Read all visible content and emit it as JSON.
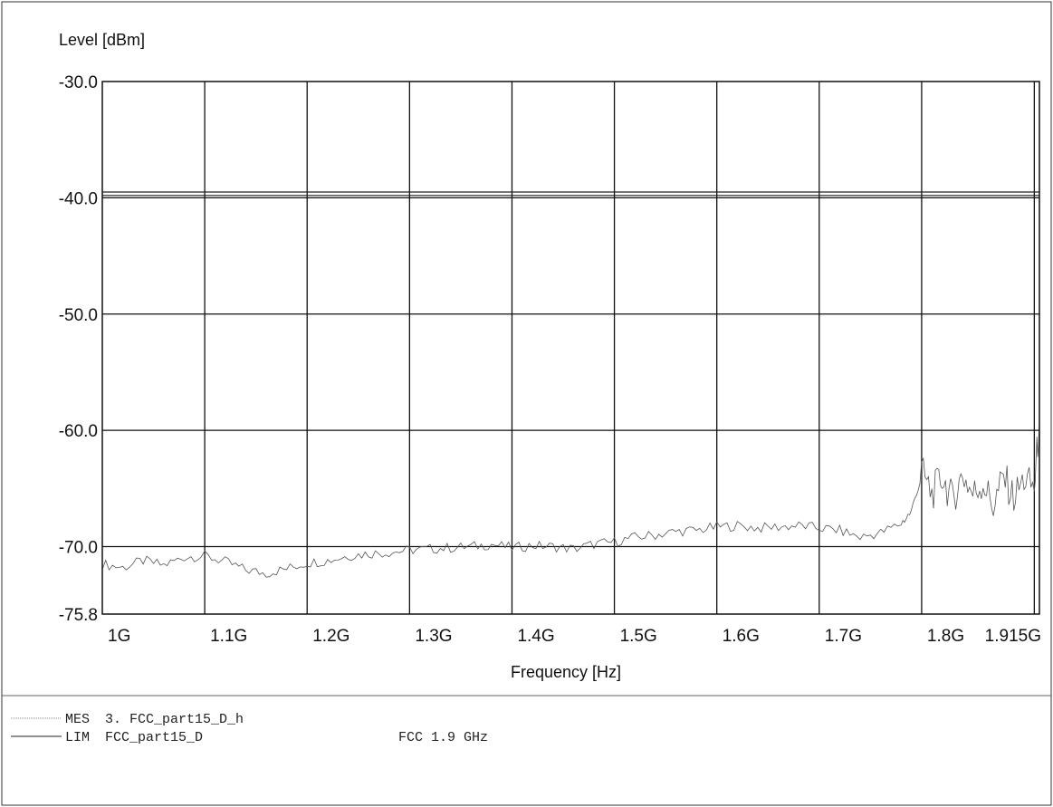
{
  "chart_data": {
    "type": "line",
    "ylabel": "Level [dBm]",
    "xlabel": "Frequency [Hz]",
    "x_unit": "Hz",
    "x_range": [
      1000000000,
      1915000000
    ],
    "y_range": [
      -75.8,
      -30.0
    ],
    "y_ticks": [
      {
        "value": -30.0,
        "label": "-30.0"
      },
      {
        "value": -40.0,
        "label": "-40.0"
      },
      {
        "value": -50.0,
        "label": "-50.0"
      },
      {
        "value": -60.0,
        "label": "-60.0"
      },
      {
        "value": -70.0,
        "label": "-70.0"
      },
      {
        "value": -75.8,
        "label": "-75.8"
      }
    ],
    "x_ticks": [
      {
        "value": 1000000000,
        "label": "1G"
      },
      {
        "value": 1100000000,
        "label": "1.1G"
      },
      {
        "value": 1200000000,
        "label": "1.2G"
      },
      {
        "value": 1300000000,
        "label": "1.3G"
      },
      {
        "value": 1400000000,
        "label": "1.4G"
      },
      {
        "value": 1500000000,
        "label": "1.5G"
      },
      {
        "value": 1600000000,
        "label": "1.6G"
      },
      {
        "value": 1700000000,
        "label": "1.7G"
      },
      {
        "value": 1800000000,
        "label": "1.8G"
      },
      {
        "value": 1915000000,
        "label": "1.915G"
      }
    ],
    "grid": true,
    "series": [
      {
        "name": "MES 3. FCC_part15_D_h",
        "style": "dotted-thin",
        "color": "#555555",
        "x": [
          1000000000,
          1020000000,
          1040000000,
          1060000000,
          1080000000,
          1100000000,
          1120000000,
          1140000000,
          1160000000,
          1180000000,
          1200000000,
          1220000000,
          1240000000,
          1260000000,
          1280000000,
          1300000000,
          1320000000,
          1340000000,
          1360000000,
          1380000000,
          1400000000,
          1420000000,
          1440000000,
          1460000000,
          1480000000,
          1500000000,
          1520000000,
          1540000000,
          1560000000,
          1580000000,
          1600000000,
          1620000000,
          1640000000,
          1660000000,
          1680000000,
          1700000000,
          1720000000,
          1740000000,
          1760000000,
          1780000000,
          1790000000,
          1800000000,
          1810000000,
          1820000000,
          1830000000,
          1840000000,
          1850000000,
          1860000000,
          1870000000,
          1880000000,
          1890000000,
          1900000000,
          1910000000,
          1915000000
        ],
        "y": [
          -71.5,
          -71.8,
          -71.2,
          -71.6,
          -70.9,
          -70.8,
          -71.3,
          -72.0,
          -72.3,
          -71.9,
          -71.4,
          -71.2,
          -70.8,
          -70.6,
          -70.5,
          -70.3,
          -70.2,
          -70.1,
          -70.0,
          -69.8,
          -70.1,
          -69.9,
          -70.0,
          -70.2,
          -69.8,
          -69.6,
          -69.2,
          -69.0,
          -68.7,
          -68.6,
          -68.3,
          -68.2,
          -68.4,
          -68.3,
          -68.2,
          -68.4,
          -68.6,
          -69.2,
          -68.8,
          -68.0,
          -67.0,
          -63.5,
          -65.5,
          -64.0,
          -66.0,
          -63.8,
          -65.5,
          -64.5,
          -66.5,
          -64.0,
          -65.8,
          -64.2,
          -65.0,
          -59.0
        ]
      },
      {
        "name": "LIM FCC_part15_D",
        "style": "solid-thin",
        "color": "#222222",
        "x": [
          1000000000,
          1915000000
        ],
        "y": [
          -39.5,
          -39.5
        ]
      },
      {
        "name": "LIM FCC_part15_D",
        "style": "solid-thin",
        "color": "#222222",
        "x": [
          1000000000,
          1915000000
        ],
        "y": [
          -39.8,
          -39.8
        ]
      }
    ]
  },
  "legend": [
    {
      "code": "MES",
      "text": "3. FCC_part15_D_h",
      "note": ""
    },
    {
      "code": "LIM",
      "text": "FCC_part15_D",
      "note": "FCC 1.9 GHz"
    }
  ]
}
